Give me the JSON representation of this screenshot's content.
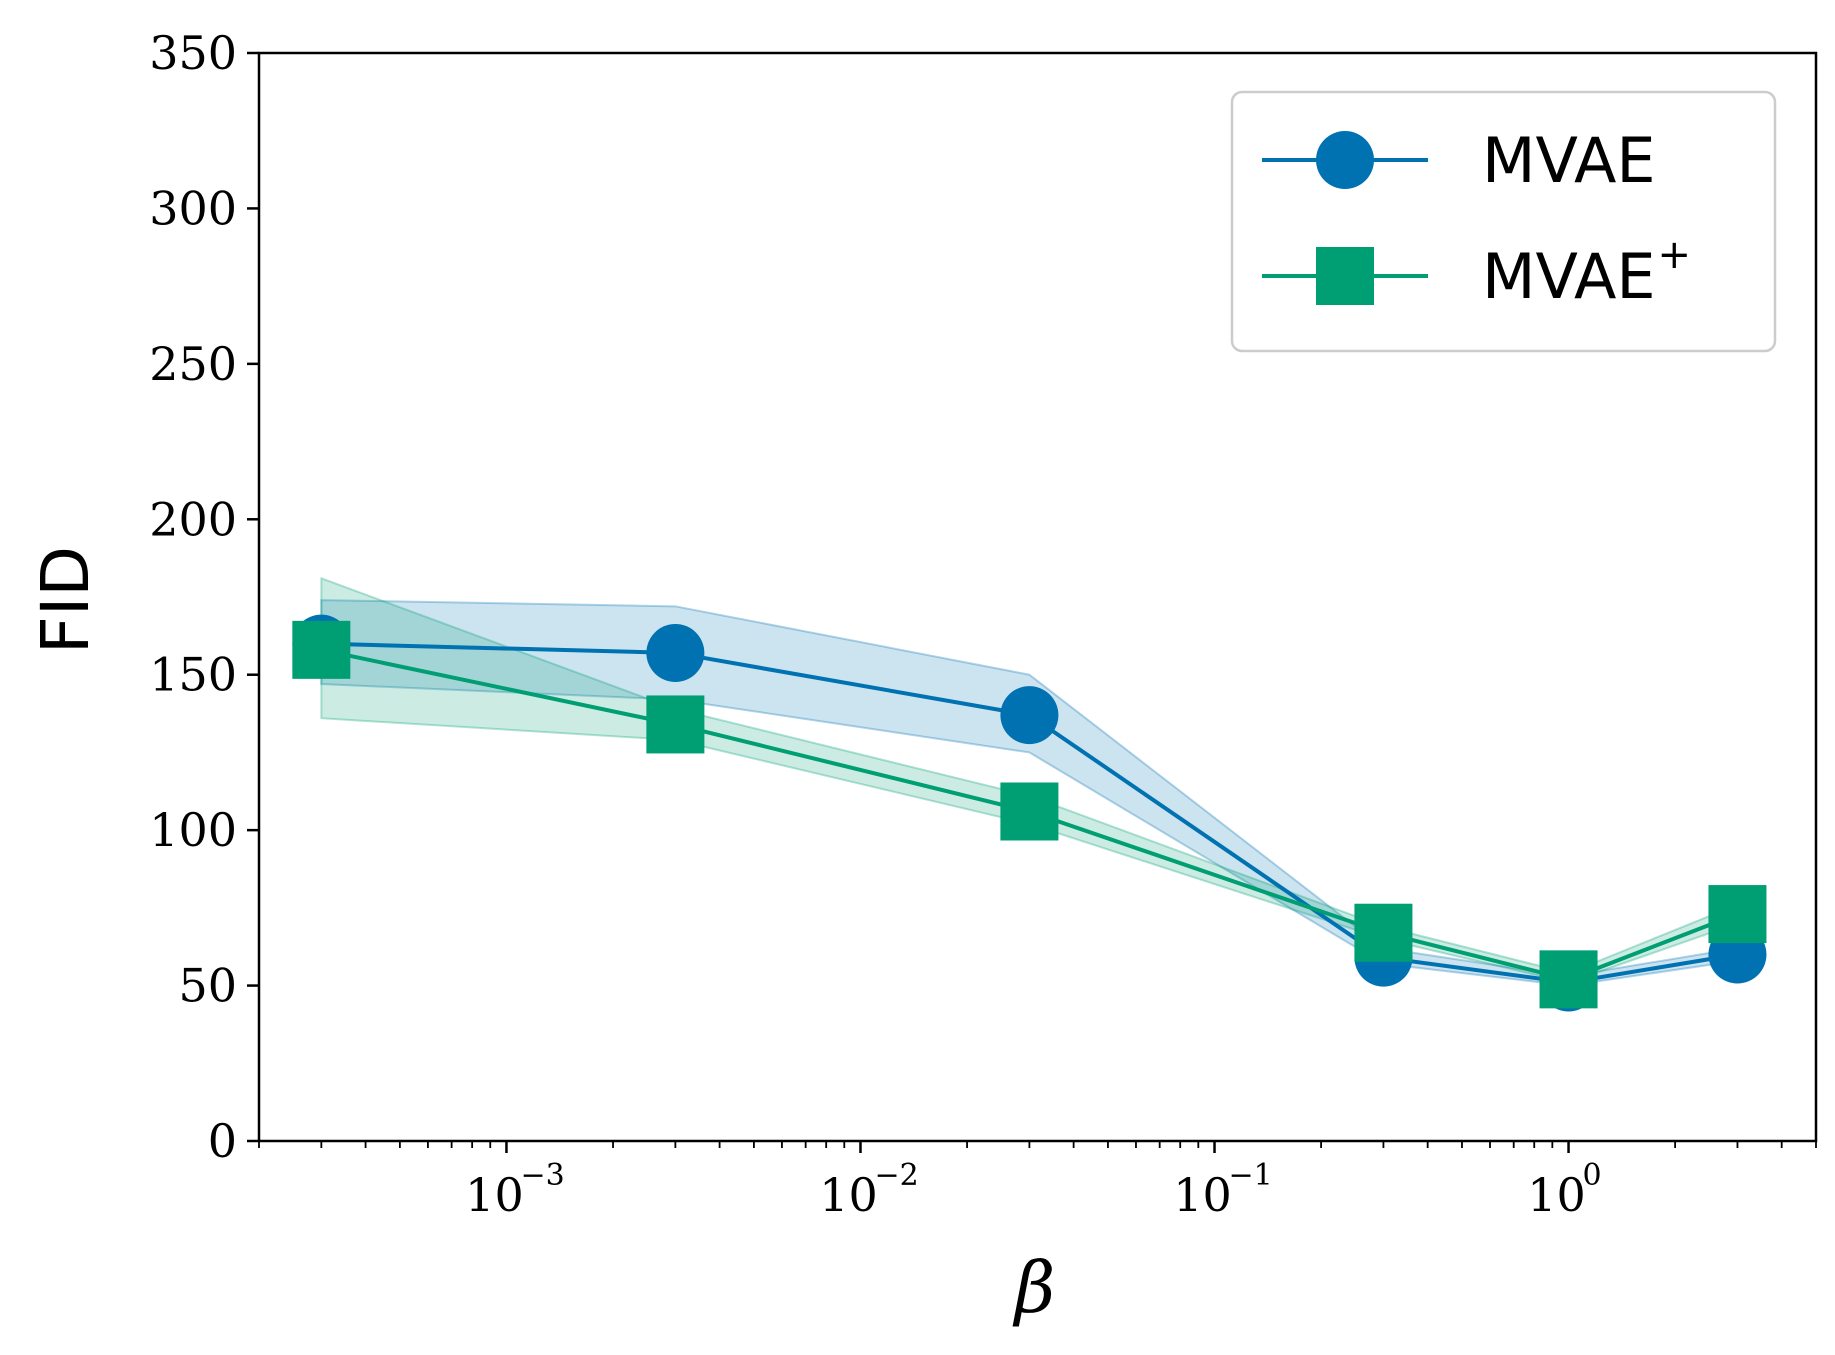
{
  "chart_data": {
    "type": "line",
    "title": "",
    "xlabel": "β",
    "ylabel": "FID",
    "x_scale": "log",
    "xlim": [
      0.0002,
      5
    ],
    "ylim": [
      0,
      350
    ],
    "x_ticks": [
      {
        "value": 0.001,
        "base": "10",
        "exp": "−3"
      },
      {
        "value": 0.01,
        "base": "10",
        "exp": "−2"
      },
      {
        "value": 0.1,
        "base": "10",
        "exp": "−1"
      },
      {
        "value": 1,
        "base": "10",
        "exp": "0"
      }
    ],
    "y_ticks": [
      "0",
      "50",
      "100",
      "150",
      "200",
      "250",
      "300",
      "350"
    ],
    "grid": false,
    "legend": {
      "placement": "top-right",
      "entries": [
        {
          "name": "MVAE",
          "sup": ""
        },
        {
          "name": "MVAE",
          "sup": "+"
        }
      ]
    },
    "x": [
      0.0003,
      0.003,
      0.03,
      0.3,
      1,
      3
    ],
    "series": [
      {
        "name": "MVAE",
        "marker": "circle",
        "color": "#0072b2",
        "values": [
          160,
          157,
          137,
          59,
          51,
          60
        ],
        "lower": [
          147,
          142,
          125,
          57,
          50,
          58
        ],
        "upper": [
          174,
          172,
          150,
          62,
          53,
          62
        ]
      },
      {
        "name": "MVAE+",
        "marker": "square",
        "color": "#009e73",
        "values": [
          158,
          134,
          106,
          67,
          52,
          73
        ],
        "lower": [
          136,
          129,
          102,
          65,
          51,
          70
        ],
        "upper": [
          181,
          139,
          111,
          69,
          54,
          76
        ]
      }
    ]
  }
}
